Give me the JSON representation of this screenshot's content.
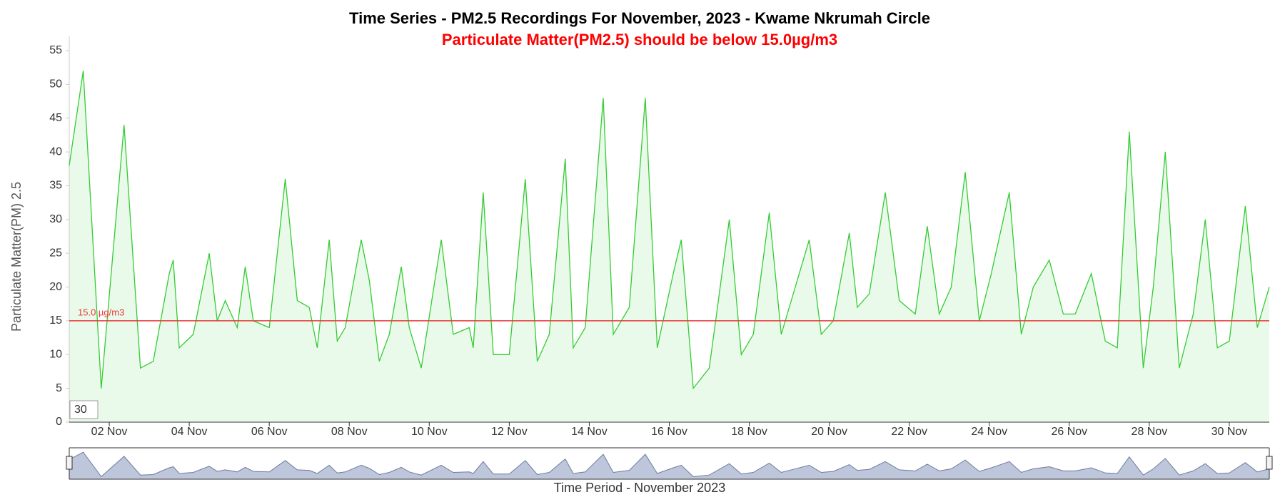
{
  "chart_data": {
    "type": "area",
    "title": "Time Series - PM2.5 Recordings For November, 2023 - Kwame Nkrumah Circle",
    "subtitle": "Particulate Matter(PM2.5) should be below 15.0µg/m3",
    "y_label": "Particulate Matter(PM) 2.5",
    "x_label": "Time Period - November 2023",
    "range_input": "30",
    "threshold": {
      "value": 15,
      "label": "15.0 µg/m3",
      "color": "#e53935"
    },
    "xlim": [
      1,
      31
    ],
    "ylim": [
      0,
      55
    ],
    "xticks": [
      {
        "value": 2,
        "label": "02 Nov"
      },
      {
        "value": 4,
        "label": "04 Nov"
      },
      {
        "value": 6,
        "label": "06 Nov"
      },
      {
        "value": 8,
        "label": "08 Nov"
      },
      {
        "value": 10,
        "label": "10 Nov"
      },
      {
        "value": 12,
        "label": "12 Nov"
      },
      {
        "value": 14,
        "label": "14 Nov"
      },
      {
        "value": 16,
        "label": "16 Nov"
      },
      {
        "value": 18,
        "label": "18 Nov"
      },
      {
        "value": 20,
        "label": "20 Nov"
      },
      {
        "value": 22,
        "label": "22 Nov"
      },
      {
        "value": 24,
        "label": "24 Nov"
      },
      {
        "value": 26,
        "label": "26 Nov"
      },
      {
        "value": 28,
        "label": "28 Nov"
      },
      {
        "value": 30,
        "label": "30 Nov"
      }
    ],
    "yticks": [
      0,
      5,
      10,
      15,
      20,
      25,
      30,
      35,
      40,
      45,
      50,
      55
    ],
    "series": [
      {
        "name": "PM2.5",
        "color": "#33cc33",
        "x": [
          1.0,
          1.35,
          1.8,
          2.37,
          2.78,
          3.1,
          3.5,
          3.6,
          3.75,
          4.1,
          4.5,
          4.7,
          4.9,
          5.2,
          5.4,
          5.6,
          6.0,
          6.4,
          6.7,
          7.0,
          7.2,
          7.5,
          7.7,
          7.9,
          8.3,
          8.5,
          8.75,
          9.0,
          9.3,
          9.5,
          9.8,
          10.3,
          10.6,
          11.0,
          11.1,
          11.35,
          11.6,
          12.0,
          12.4,
          12.7,
          13.0,
          13.4,
          13.6,
          13.9,
          14.35,
          14.6,
          15.0,
          15.4,
          15.7,
          16.1,
          16.3,
          16.6,
          17.0,
          17.5,
          17.8,
          18.1,
          18.5,
          18.8,
          19.1,
          19.5,
          19.8,
          20.1,
          20.5,
          20.7,
          21.0,
          21.4,
          21.75,
          22.15,
          22.45,
          22.75,
          23.05,
          23.4,
          23.75,
          24.05,
          24.5,
          24.8,
          25.1,
          25.5,
          25.85,
          26.15,
          26.55,
          26.9,
          27.2,
          27.5,
          27.85,
          28.1,
          28.4,
          28.75,
          29.1,
          29.4,
          29.7,
          30.0,
          30.4,
          30.7,
          31.0
        ],
        "values": [
          38,
          52,
          5,
          44,
          8,
          9,
          22,
          24,
          11,
          13,
          25,
          15,
          18,
          14,
          23,
          15,
          14,
          36,
          18,
          17,
          11,
          27,
          12,
          14,
          27,
          21,
          9,
          13,
          23,
          14,
          8,
          27,
          13,
          14,
          11,
          34,
          10,
          10,
          36,
          9,
          13,
          39,
          11,
          14,
          48,
          13,
          17,
          48,
          11,
          22,
          27,
          5,
          8,
          30,
          10,
          13,
          31,
          13,
          19,
          27,
          13,
          15,
          28,
          17,
          19,
          34,
          18,
          16,
          29,
          16,
          20,
          37,
          15,
          22,
          34,
          13,
          20,
          24,
          16,
          16,
          22,
          12,
          11,
          43,
          8,
          20,
          40,
          8,
          16,
          30,
          11,
          12,
          32,
          14,
          20
        ]
      }
    ]
  }
}
